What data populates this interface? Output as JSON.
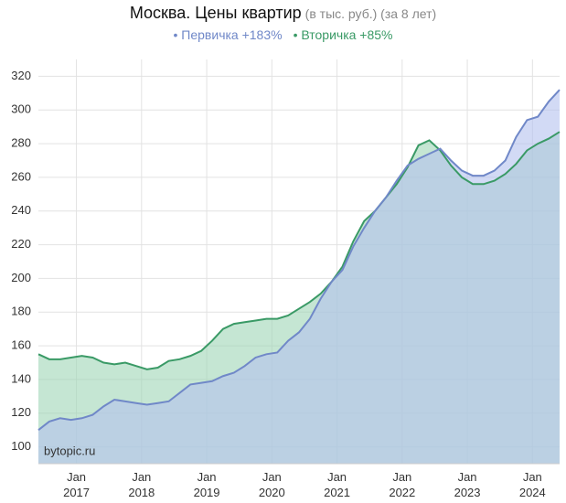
{
  "chart_data": {
    "type": "area",
    "title": "Москва. Цены квартир",
    "subtitle": "(в тыс. руб.) (за 8 лет)",
    "annotation": "bytopic.ru",
    "x": [
      "2016-06",
      "2016-08",
      "2016-10",
      "2016-12",
      "2017-02",
      "2017-04",
      "2017-06",
      "2017-08",
      "2017-10",
      "2017-12",
      "2018-02",
      "2018-04",
      "2018-06",
      "2018-08",
      "2018-10",
      "2018-12",
      "2019-02",
      "2019-04",
      "2019-06",
      "2019-08",
      "2019-10",
      "2019-12",
      "2020-02",
      "2020-04",
      "2020-06",
      "2020-08",
      "2020-10",
      "2020-12",
      "2021-02",
      "2021-04",
      "2021-06",
      "2021-08",
      "2021-10",
      "2021-12",
      "2022-02",
      "2022-04",
      "2022-06",
      "2022-08",
      "2022-10",
      "2022-12",
      "2023-02",
      "2023-04",
      "2023-06",
      "2023-08",
      "2023-10",
      "2023-12",
      "2024-02",
      "2024-04",
      "2024-06"
    ],
    "series": [
      {
        "name": "Первичка +183%",
        "color": "#7088c8",
        "fill": "#b4c2ee",
        "values": [
          110,
          115,
          117,
          116,
          117,
          119,
          124,
          128,
          127,
          126,
          125,
          126,
          127,
          132,
          137,
          138,
          139,
          142,
          144,
          148,
          153,
          155,
          156,
          163,
          168,
          176,
          188,
          198,
          205,
          219,
          230,
          240,
          248,
          258,
          267,
          271,
          274,
          277,
          270,
          264,
          261,
          261,
          264,
          270,
          284,
          294,
          296,
          305,
          312
        ]
      },
      {
        "name": "Вторичка +85%",
        "color": "#3a9a66",
        "fill": "#9fd6b6",
        "values": [
          155,
          152,
          152,
          153,
          154,
          153,
          150,
          149,
          150,
          148,
          146,
          147,
          151,
          152,
          154,
          157,
          163,
          170,
          173,
          174,
          175,
          176,
          176,
          178,
          182,
          186,
          191,
          198,
          207,
          222,
          234,
          240,
          248,
          256,
          266,
          279,
          282,
          276,
          267,
          260,
          256,
          256,
          258,
          262,
          268,
          276,
          280,
          283,
          287
        ]
      }
    ],
    "xlim": [
      "2016-06",
      "2024-06"
    ],
    "xticks": [
      {
        "value": "2017-01",
        "label": "Jan 2017"
      },
      {
        "value": "2018-01",
        "label": "Jan 2018"
      },
      {
        "value": "2019-01",
        "label": "Jan 2019"
      },
      {
        "value": "2020-01",
        "label": "Jan 2020"
      },
      {
        "value": "2021-01",
        "label": "Jan 2021"
      },
      {
        "value": "2022-01",
        "label": "Jan 2022"
      },
      {
        "value": "2023-01",
        "label": "Jan 2023"
      },
      {
        "value": "2024-01",
        "label": "Jan 2024"
      }
    ],
    "ylim": [
      90,
      330
    ],
    "yticks": [
      100,
      120,
      140,
      160,
      180,
      200,
      220,
      240,
      260,
      280,
      300,
      320
    ],
    "grid": true
  }
}
